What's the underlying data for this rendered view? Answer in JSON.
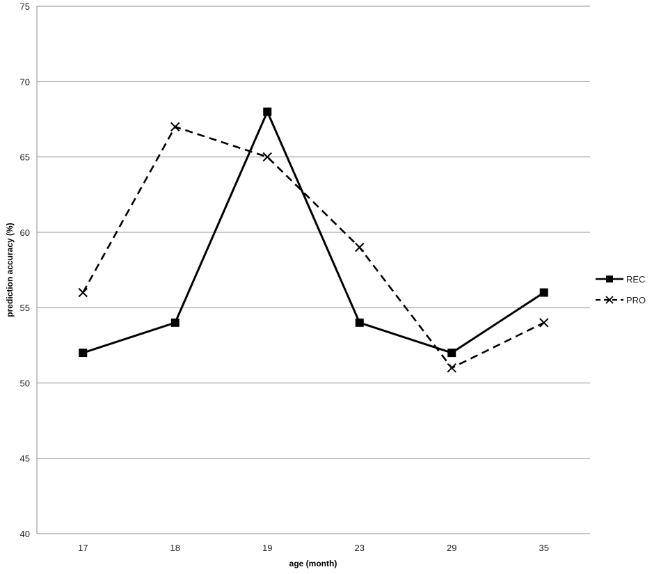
{
  "chart_data": {
    "type": "line",
    "xlabel": "age (month)",
    "ylabel": "prediction accuracy (%)",
    "categories": [
      "17",
      "18",
      "19",
      "23",
      "29",
      "35"
    ],
    "ylim": [
      40,
      75
    ],
    "yticks": [
      "40",
      "45",
      "50",
      "55",
      "60",
      "65",
      "70",
      "75"
    ],
    "grid": true,
    "legend_position": "right",
    "series": [
      {
        "name": "REC",
        "values": [
          52,
          54,
          68,
          54,
          52,
          56
        ],
        "marker": "square",
        "line_style": "solid",
        "color": "#000000"
      },
      {
        "name": "PRO",
        "values": [
          56,
          67,
          65,
          59,
          51,
          54
        ],
        "marker": "x",
        "line_style": "dashed",
        "color": "#000000"
      }
    ]
  }
}
